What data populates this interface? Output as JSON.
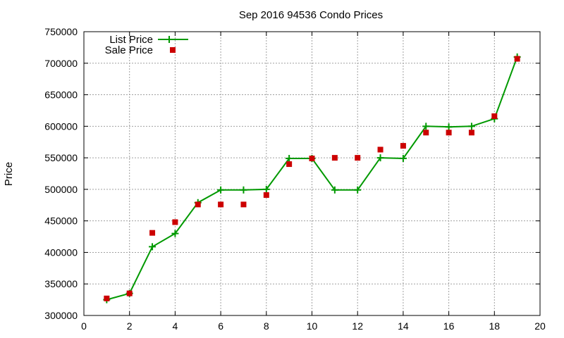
{
  "chart_data": {
    "type": "line",
    "title": "Sep 2016 94536 Condo Prices",
    "xlabel": "",
    "ylabel": "Price",
    "xlim": [
      0,
      20
    ],
    "ylim": [
      300000,
      750000
    ],
    "x_ticks": [
      0,
      2,
      4,
      6,
      8,
      10,
      12,
      14,
      16,
      18,
      20
    ],
    "y_ticks": [
      300000,
      350000,
      400000,
      450000,
      500000,
      550000,
      600000,
      650000,
      700000,
      750000
    ],
    "grid": true,
    "legend_position": "top-left",
    "series": [
      {
        "name": "List Price",
        "style": "line-with-plus-markers",
        "color": "#009900",
        "x": [
          1,
          2,
          3,
          4,
          5,
          6,
          7,
          8,
          9,
          10,
          11,
          12,
          13,
          14,
          15,
          16,
          17,
          18,
          19
        ],
        "values": [
          325000,
          335000,
          409000,
          430000,
          479000,
          499000,
          499000,
          500000,
          549000,
          549000,
          499000,
          499000,
          550000,
          549000,
          600000,
          599000,
          600000,
          612000,
          710000
        ]
      },
      {
        "name": "Sale Price",
        "style": "square-markers",
        "color": "#cc0000",
        "x": [
          1,
          2,
          3,
          4,
          5,
          6,
          7,
          8,
          9,
          10,
          11,
          12,
          13,
          14,
          15,
          16,
          17,
          18,
          19
        ],
        "values": [
          327000,
          335000,
          431000,
          448000,
          476000,
          476000,
          476000,
          491000,
          540000,
          549000,
          550000,
          550000,
          563000,
          569000,
          590000,
          590000,
          590000,
          616000,
          707000
        ]
      }
    ]
  }
}
